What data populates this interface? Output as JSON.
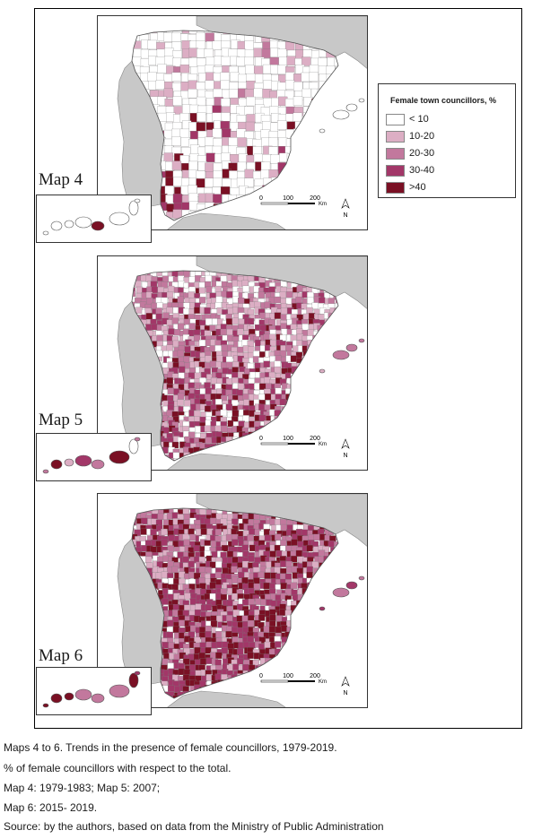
{
  "maps": [
    {
      "label": "Map 4",
      "scale_ticks": [
        "0",
        "100",
        "200"
      ],
      "scale_unit": "Km",
      "north": "N"
    },
    {
      "label": "Map 5",
      "scale_ticks": [
        "0",
        "100",
        "200"
      ],
      "scale_unit": "Km",
      "north": "N"
    },
    {
      "label": "Map 6",
      "scale_ticks": [
        "0",
        "100",
        "200"
      ],
      "scale_unit": "Km",
      "north": "N"
    }
  ],
  "legend": {
    "title": "Female town councillors, %",
    "items": [
      {
        "label": "< 10",
        "color": "#ffffff"
      },
      {
        "label": "10-20",
        "color": "#dcaec4"
      },
      {
        "label": "20-30",
        "color": "#c2789d"
      },
      {
        "label": "30-40",
        "color": "#a23768"
      },
      {
        "label": ">40",
        "color": "#7a1024"
      }
    ]
  },
  "colors": {
    "neighbour_land": "#c8c8c8",
    "sea": "#ffffff"
  },
  "caption": [
    "Maps 4 to 6. Trends in the presence of female councillors, 1979-2019.",
    "% of female councillors with respect to the total.",
    "Map 4: 1979-1983; Map 5: 2007;",
    "Map 6: 2015- 2019.",
    "Source: by the authors, based on data from the Ministry of Public Administration"
  ]
}
